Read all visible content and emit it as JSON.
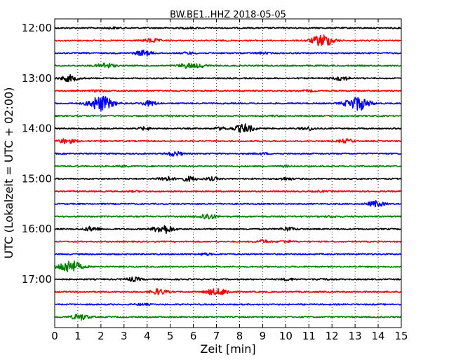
{
  "chart_data": {
    "type": "line",
    "title": "BW.BE1..HHZ 2018-05-05",
    "xlabel": "Zeit  [min]",
    "ylabel": "UTC (Lokalzeit = UTC + 02:00)",
    "xlim": [
      0,
      15
    ],
    "x_ticks": [
      "0",
      "1",
      "2",
      "3",
      "4",
      "5",
      "6",
      "7",
      "8",
      "9",
      "10",
      "11",
      "12",
      "13",
      "14",
      "15"
    ],
    "y_tick_labels": [
      "12:00",
      "13:00",
      "14:00",
      "15:00",
      "16:00",
      "17:00"
    ],
    "grid": true,
    "line_colors": [
      "#000000",
      "#ff0000",
      "#0000ff",
      "#008000"
    ],
    "series": [
      {
        "start": "12:00",
        "events": [
          [
            2.5,
            0.15
          ],
          [
            5.8,
            0.12
          ]
        ]
      },
      {
        "start": "12:15",
        "events": [
          [
            4.2,
            0.4
          ],
          [
            11.6,
            1.2
          ]
        ]
      },
      {
        "start": "12:30",
        "events": [
          [
            3.85,
            0.55
          ],
          [
            5.8,
            0.2
          ],
          [
            9.0,
            0.15
          ]
        ]
      },
      {
        "start": "12:45",
        "events": [
          [
            2.2,
            0.55
          ],
          [
            5.7,
            0.45
          ],
          [
            6.3,
            0.3
          ]
        ]
      },
      {
        "start": "13:00",
        "events": [
          [
            0.65,
            0.6
          ],
          [
            12.4,
            0.45
          ]
        ]
      },
      {
        "start": "13:15",
        "events": [
          [
            1.9,
            0.2
          ],
          [
            11.0,
            0.15
          ]
        ]
      },
      {
        "start": "13:30",
        "events": [
          [
            2.0,
            1.5
          ],
          [
            4.1,
            0.5
          ],
          [
            13.1,
            1.4
          ]
        ]
      },
      {
        "start": "13:45",
        "events": [
          [
            5.0,
            0.12
          ],
          [
            9.5,
            0.1
          ]
        ]
      },
      {
        "start": "14:00",
        "events": [
          [
            3.9,
            0.25
          ],
          [
            7.2,
            0.25
          ],
          [
            8.2,
            0.85
          ],
          [
            11.0,
            0.3
          ]
        ]
      },
      {
        "start": "14:15",
        "events": [
          [
            0.5,
            0.5
          ],
          [
            12.6,
            0.35
          ]
        ]
      },
      {
        "start": "14:30",
        "events": [
          [
            5.2,
            0.45
          ],
          [
            9.0,
            0.15
          ]
        ]
      },
      {
        "start": "14:45",
        "events": [
          [
            3.0,
            0.1
          ],
          [
            10.0,
            0.1
          ]
        ]
      },
      {
        "start": "15:00",
        "events": [
          [
            4.8,
            0.45
          ],
          [
            5.8,
            0.45
          ],
          [
            6.8,
            0.3
          ],
          [
            10.0,
            0.25
          ]
        ]
      },
      {
        "start": "15:15",
        "events": [
          [
            3.5,
            0.1
          ],
          [
            11.5,
            0.1
          ]
        ]
      },
      {
        "start": "15:30",
        "events": [
          [
            13.9,
            0.55
          ]
        ]
      },
      {
        "start": "15:45",
        "events": [
          [
            6.6,
            0.6
          ],
          [
            12.0,
            0.15
          ]
        ]
      },
      {
        "start": "16:00",
        "events": [
          [
            1.6,
            0.45
          ],
          [
            4.7,
            0.9
          ],
          [
            10.1,
            0.35
          ]
        ]
      },
      {
        "start": "16:15",
        "events": [
          [
            9.0,
            0.3
          ],
          [
            10.0,
            0.2
          ]
        ]
      },
      {
        "start": "16:30",
        "events": [
          [
            6.5,
            0.2
          ]
        ]
      },
      {
        "start": "16:45",
        "events": [
          [
            0.65,
            1.3
          ]
        ]
      },
      {
        "start": "17:00",
        "events": [
          [
            3.4,
            0.4
          ],
          [
            10.1,
            0.2
          ],
          [
            11.5,
            0.15
          ]
        ]
      },
      {
        "start": "17:15",
        "events": [
          [
            4.5,
            0.55
          ],
          [
            6.8,
            0.45
          ],
          [
            7.3,
            0.5
          ]
        ]
      },
      {
        "start": "17:30",
        "events": [
          [
            3.8,
            0.15
          ]
        ]
      },
      {
        "start": "17:45",
        "events": [
          [
            1.1,
            0.6
          ]
        ]
      }
    ]
  }
}
